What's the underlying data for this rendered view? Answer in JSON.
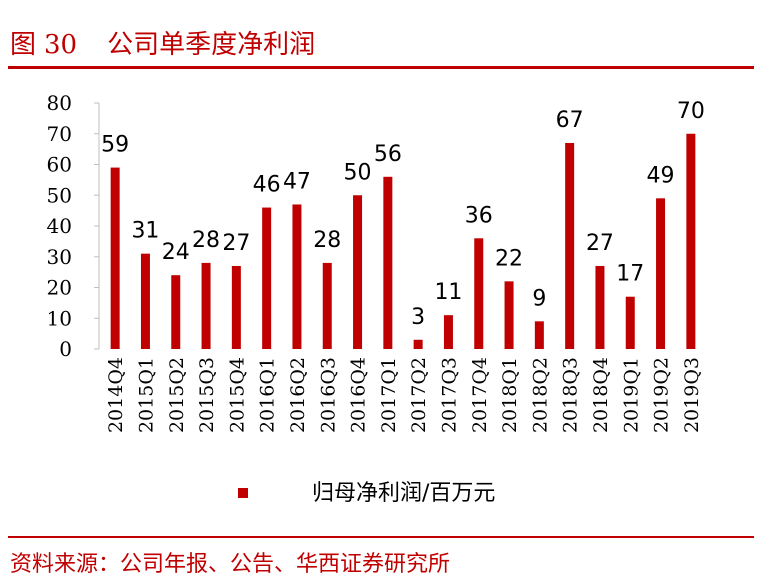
{
  "header": {
    "figure_prefix": "图",
    "figure_number": "30",
    "title": "公司单季度净利润"
  },
  "source": "资料来源：公司年报、公告、华西证券研究所",
  "colors": {
    "accent": "#c00000",
    "bar": "#c00000"
  },
  "chart_data": {
    "type": "bar",
    "categories": [
      "2014Q4",
      "2015Q1",
      "2015Q2",
      "2015Q3",
      "2015Q4",
      "2016Q1",
      "2016Q2",
      "2016Q3",
      "2016Q4",
      "2017Q1",
      "2017Q2",
      "2017Q3",
      "2017Q4",
      "2018Q1",
      "2018Q2",
      "2018Q3",
      "2018Q4",
      "2019Q1",
      "2019Q2",
      "2019Q3"
    ],
    "series": [
      {
        "name": "归母净利润/百万元",
        "values": [
          59,
          31,
          24,
          28,
          27,
          46,
          47,
          28,
          50,
          56,
          3,
          11,
          36,
          22,
          9,
          67,
          27,
          17,
          49,
          70
        ],
        "labels": [
          "59",
          "31",
          "24",
          "28",
          "27",
          "46",
          "47",
          "28",
          "50",
          "56",
          "3",
          "11",
          "36",
          "22",
          "9",
          "67",
          "27",
          "17",
          "49",
          "70"
        ]
      }
    ],
    "ylim": [
      0,
      80
    ],
    "yticks": [
      0,
      10,
      20,
      30,
      40,
      50,
      60,
      70,
      80
    ],
    "grid": false,
    "legend_position": "bottom-center"
  }
}
